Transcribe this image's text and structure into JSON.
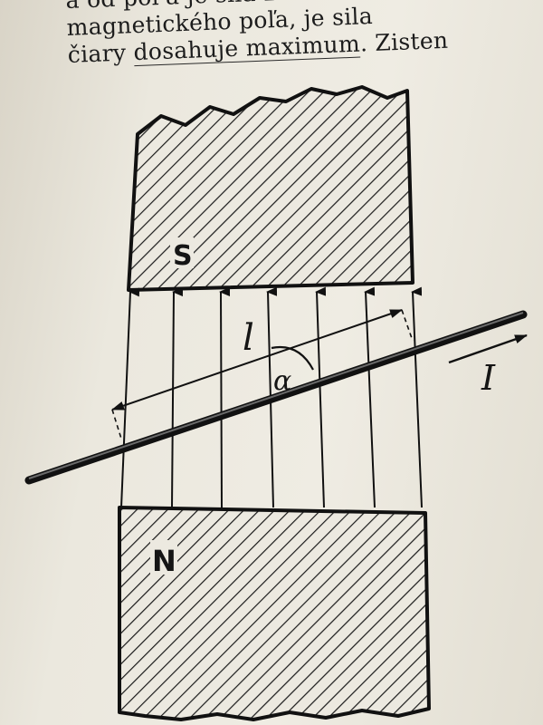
{
  "text": {
    "line1": "a od pol'a je sila B ako",
    "line2": "magnetického poľa, je sila",
    "line3_part1": "čiary",
    "line3_underlined": "dosahuje maximum",
    "line3_part2": ". Zisten"
  },
  "figure": {
    "south_label": "S",
    "north_label": "N",
    "length_label": "l",
    "angle_label": "α",
    "current_label": "I",
    "field_line_count": 7
  }
}
